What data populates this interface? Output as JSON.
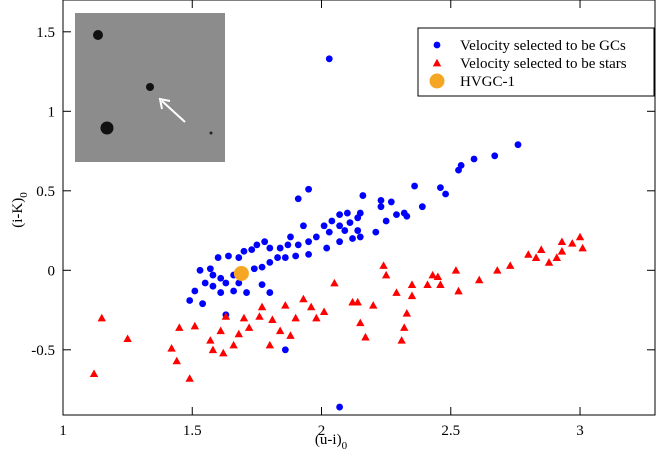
{
  "chart_data": {
    "type": "scatter",
    "x_label": "(u-i)",
    "x_label_subscript": "0",
    "y_label": "(i-K)",
    "y_label_subscript": "0",
    "xlim": [
      1,
      3.29
    ],
    "ylim": [
      -0.91,
      1.7
    ],
    "xticks": [
      1,
      1.5,
      2,
      2.5,
      3
    ],
    "yticks": [
      -0.5,
      0,
      0.5,
      1,
      1.5
    ],
    "legend": "upper right",
    "series": [
      {
        "name": "Velocity selected to be GCs",
        "color": "#0000ff",
        "marker": "circle",
        "x": [
          2.03,
          2.76,
          2.67,
          2.59,
          2.54,
          2.53,
          2.46,
          2.48,
          2.36,
          2.39,
          1.95,
          1.91,
          2.16,
          2.23,
          2.27,
          2.23,
          2.32,
          2.29,
          2.33,
          2.25,
          2.21,
          2.15,
          2.14,
          2.1,
          2.07,
          2.04,
          2.01,
          2.07,
          2.11,
          2.09,
          2.14,
          2.15,
          2.03,
          1.98,
          1.95,
          1.93,
          1.88,
          1.91,
          1.87,
          1.84,
          1.8,
          1.78,
          1.75,
          1.73,
          1.7,
          1.68,
          1.64,
          1.6,
          1.57,
          1.53,
          1.58,
          1.61,
          1.63,
          1.66,
          1.68,
          1.7,
          1.74,
          1.77,
          1.8,
          1.83,
          1.86,
          1.9,
          1.95,
          2.02,
          2.07,
          2.12,
          1.66,
          1.61,
          1.58,
          1.55,
          1.51,
          1.49,
          1.54,
          1.63,
          1.8,
          1.86,
          2.07,
          1.71,
          1.77
        ],
        "values": [
          1.33,
          0.79,
          0.72,
          0.7,
          0.66,
          0.63,
          0.52,
          0.48,
          0.53,
          0.4,
          0.51,
          0.45,
          0.47,
          0.44,
          0.43,
          0.4,
          0.36,
          0.35,
          0.34,
          0.31,
          0.24,
          0.36,
          0.33,
          0.36,
          0.35,
          0.31,
          0.28,
          0.28,
          0.3,
          0.25,
          0.25,
          0.21,
          0.24,
          0.21,
          0.18,
          0.28,
          0.21,
          0.16,
          0.16,
          0.14,
          0.14,
          0.18,
          0.16,
          0.13,
          0.12,
          0.08,
          0.09,
          0.08,
          0.01,
          0.0,
          -0.03,
          -0.05,
          -0.08,
          -0.03,
          -0.08,
          -0.02,
          0.01,
          0.02,
          0.05,
          0.08,
          0.08,
          0.09,
          0.1,
          0.14,
          0.18,
          0.2,
          -0.13,
          -0.14,
          -0.1,
          -0.08,
          -0.13,
          -0.19,
          -0.21,
          -0.28,
          -0.14,
          -0.5,
          -0.86,
          -0.14,
          -0.09
        ]
      },
      {
        "name": "Velocity selected to be  stars",
        "color": "#ff0000",
        "marker": "triangle",
        "x": [
          1.12,
          1.15,
          1.25,
          1.42,
          1.44,
          1.45,
          1.49,
          1.51,
          1.57,
          1.58,
          1.62,
          1.61,
          1.63,
          1.68,
          1.66,
          1.7,
          1.72,
          1.76,
          1.77,
          1.81,
          1.8,
          1.84,
          1.86,
          1.9,
          1.88,
          1.93,
          1.96,
          1.98,
          2.01,
          2.05,
          2.12,
          2.14,
          2.15,
          2.17,
          2.2,
          2.24,
          2.25,
          2.29,
          2.31,
          2.32,
          2.33,
          2.35,
          2.35,
          2.41,
          2.43,
          2.45,
          2.46,
          2.52,
          2.53,
          2.61,
          2.68,
          2.73,
          2.8,
          2.83,
          2.85,
          2.88,
          2.91,
          2.93,
          2.97,
          3.0,
          3.01,
          2.93
        ],
        "values": [
          -0.65,
          -0.3,
          -0.43,
          -0.49,
          -0.57,
          -0.36,
          -0.68,
          -0.35,
          -0.44,
          -0.5,
          -0.52,
          -0.38,
          -0.29,
          -0.4,
          -0.47,
          -0.3,
          -0.36,
          -0.29,
          -0.23,
          -0.31,
          -0.47,
          -0.38,
          -0.22,
          -0.3,
          -0.41,
          -0.18,
          -0.23,
          -0.3,
          -0.26,
          -0.08,
          -0.2,
          -0.2,
          -0.33,
          -0.42,
          -0.22,
          0.03,
          -0.03,
          -0.14,
          -0.44,
          -0.36,
          -0.27,
          -0.16,
          -0.09,
          -0.09,
          -0.03,
          -0.04,
          -0.09,
          0.0,
          -0.13,
          -0.06,
          0.0,
          0.03,
          0.1,
          0.08,
          0.13,
          0.05,
          0.08,
          0.12,
          0.17,
          0.21,
          0.14,
          0.18
        ]
      },
      {
        "name": "HVGC-1",
        "color": "#f5a623",
        "marker": "big-circle",
        "x": [
          1.69
        ],
        "values": [
          -0.02
        ]
      }
    ]
  }
}
